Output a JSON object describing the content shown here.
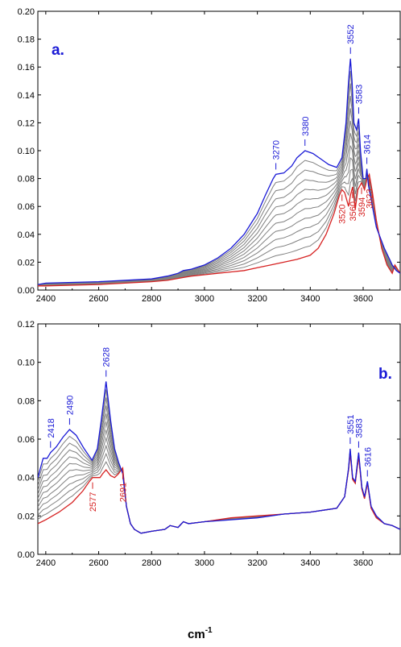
{
  "colors": {
    "blue": "#1a1ad6",
    "red": "#d62222",
    "gray": "#808080",
    "axis": "#000000"
  },
  "xlabel": {
    "base": "cm",
    "sup": "-1"
  },
  "chart_data": [
    {
      "type": "line",
      "panel_label": "a.",
      "xlim": [
        2370,
        3740
      ],
      "ylim": [
        0.0,
        0.2
      ],
      "xticks": [
        "2400",
        "2600",
        "2800",
        "3000",
        "3200",
        "3400",
        "3600"
      ],
      "yticks": [
        "0.00",
        "0.02",
        "0.04",
        "0.06",
        "0.08",
        "0.10",
        "0.12",
        "0.14",
        "0.16",
        "0.18",
        "0.20"
      ],
      "series": [
        {
          "role": "top",
          "color": "blue",
          "x": [
            2370,
            2400,
            2600,
            2800,
            2860,
            2900,
            2920,
            2950,
            3000,
            3050,
            3100,
            3150,
            3200,
            3230,
            3260,
            3270,
            3300,
            3330,
            3350,
            3380,
            3410,
            3440,
            3470,
            3500,
            3520,
            3535,
            3545,
            3552,
            3558,
            3565,
            3575,
            3583,
            3590,
            3600,
            3610,
            3614,
            3620,
            3635,
            3650,
            3680,
            3700,
            3710,
            3725,
            3740
          ],
          "y": [
            0.004,
            0.005,
            0.006,
            0.008,
            0.01,
            0.012,
            0.014,
            0.015,
            0.018,
            0.023,
            0.03,
            0.04,
            0.055,
            0.068,
            0.08,
            0.083,
            0.084,
            0.089,
            0.095,
            0.1,
            0.098,
            0.094,
            0.09,
            0.088,
            0.095,
            0.12,
            0.15,
            0.166,
            0.15,
            0.12,
            0.115,
            0.123,
            0.1,
            0.08,
            0.08,
            0.087,
            0.075,
            0.06,
            0.045,
            0.03,
            0.022,
            0.018,
            0.014,
            0.012
          ]
        },
        {
          "role": "bottom",
          "color": "red",
          "x": [
            2370,
            2400,
            2600,
            2800,
            2860,
            2920,
            2950,
            3000,
            3050,
            3100,
            3150,
            3200,
            3250,
            3300,
            3350,
            3400,
            3430,
            3460,
            3490,
            3510,
            3520,
            3530,
            3545,
            3552,
            3560,
            3570,
            3580,
            3594,
            3605,
            3615,
            3623,
            3635,
            3650,
            3670,
            3690,
            3710,
            3720,
            3740
          ],
          "y": [
            0.003,
            0.003,
            0.004,
            0.006,
            0.007,
            0.009,
            0.01,
            0.011,
            0.012,
            0.013,
            0.014,
            0.016,
            0.018,
            0.02,
            0.022,
            0.025,
            0.03,
            0.04,
            0.055,
            0.068,
            0.072,
            0.07,
            0.06,
            0.068,
            0.074,
            0.058,
            0.072,
            0.077,
            0.072,
            0.08,
            0.083,
            0.07,
            0.05,
            0.03,
            0.018,
            0.012,
            0.018,
            0.012
          ]
        }
      ],
      "intermediate_curves": 10,
      "annotations_top": [
        "3270",
        "3380",
        "3552",
        "3583",
        "3614"
      ],
      "annotations_bottom": [
        "3520",
        "3560",
        "3594",
        "3623"
      ],
      "annotations_top_x": [
        3270,
        3380,
        3552,
        3583,
        3614
      ],
      "annotations_bottom_x": [
        3520,
        3560,
        3594,
        3623
      ]
    },
    {
      "type": "line",
      "panel_label": "b.",
      "xlim": [
        2370,
        3740
      ],
      "ylim": [
        0.0,
        0.12
      ],
      "xticks": [
        "2400",
        "2600",
        "2800",
        "3000",
        "3200",
        "3400",
        "3600"
      ],
      "yticks": [
        "0.00",
        "0.02",
        "0.04",
        "0.06",
        "0.08",
        "0.10",
        "0.12"
      ],
      "series": [
        {
          "role": "top",
          "color": "blue",
          "x": [
            2370,
            2390,
            2405,
            2418,
            2440,
            2465,
            2490,
            2515,
            2545,
            2575,
            2595,
            2610,
            2628,
            2645,
            2660,
            2675,
            2691,
            2705,
            2720,
            2735,
            2760,
            2800,
            2850,
            2870,
            2900,
            2920,
            2940,
            3000,
            3100,
            3200,
            3300,
            3400,
            3450,
            3500,
            3530,
            3545,
            3551,
            3560,
            3570,
            3583,
            3595,
            3605,
            3616,
            3630,
            3650,
            3680,
            3710,
            3740
          ],
          "y": [
            0.04,
            0.05,
            0.05,
            0.053,
            0.056,
            0.061,
            0.065,
            0.062,
            0.055,
            0.049,
            0.055,
            0.07,
            0.09,
            0.07,
            0.055,
            0.048,
            0.042,
            0.025,
            0.016,
            0.013,
            0.011,
            0.012,
            0.013,
            0.015,
            0.014,
            0.017,
            0.016,
            0.017,
            0.018,
            0.019,
            0.021,
            0.022,
            0.023,
            0.024,
            0.03,
            0.045,
            0.055,
            0.04,
            0.038,
            0.053,
            0.035,
            0.03,
            0.038,
            0.025,
            0.02,
            0.016,
            0.015,
            0.013
          ]
        },
        {
          "role": "bottom",
          "color": "red",
          "x": [
            2370,
            2400,
            2450,
            2500,
            2540,
            2565,
            2577,
            2590,
            2605,
            2615,
            2628,
            2645,
            2660,
            2675,
            2691,
            2705,
            2720,
            2735,
            2760,
            2800,
            2850,
            2870,
            2900,
            2920,
            2940,
            3000,
            3100,
            3200,
            3300,
            3400,
            3450,
            3500,
            3530,
            3545,
            3551,
            3560,
            3570,
            3583,
            3595,
            3605,
            3616,
            3630,
            3650,
            3680,
            3710,
            3740
          ],
          "y": [
            0.016,
            0.018,
            0.022,
            0.027,
            0.033,
            0.038,
            0.04,
            0.04,
            0.04,
            0.042,
            0.044,
            0.041,
            0.04,
            0.042,
            0.045,
            0.025,
            0.016,
            0.013,
            0.011,
            0.012,
            0.013,
            0.015,
            0.014,
            0.017,
            0.016,
            0.017,
            0.019,
            0.02,
            0.021,
            0.022,
            0.023,
            0.024,
            0.03,
            0.044,
            0.053,
            0.039,
            0.037,
            0.051,
            0.034,
            0.029,
            0.037,
            0.024,
            0.019,
            0.016,
            0.015,
            0.013
          ]
        }
      ],
      "intermediate_curves": 10,
      "annotations_top": [
        "2418",
        "2490",
        "2628",
        "3551",
        "3583",
        "3616"
      ],
      "annotations_bottom": [
        "2577",
        "2691"
      ],
      "annotations_top_x": [
        2418,
        2490,
        2628,
        3551,
        3583,
        3616
      ],
      "annotations_bottom_x": [
        2577,
        2691
      ]
    }
  ]
}
